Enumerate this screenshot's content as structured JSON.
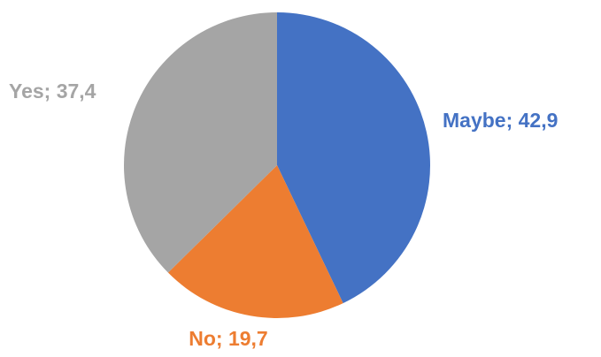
{
  "chart_data": {
    "type": "pie",
    "values": [
      42.9,
      19.7,
      37.4
    ],
    "value_labels": [
      "Maybe; 42,9",
      "No; 19,7",
      "Yes; 37,4"
    ],
    "colors": [
      "#4472c4",
      "#ed7d31",
      "#a5a5a5"
    ]
  }
}
